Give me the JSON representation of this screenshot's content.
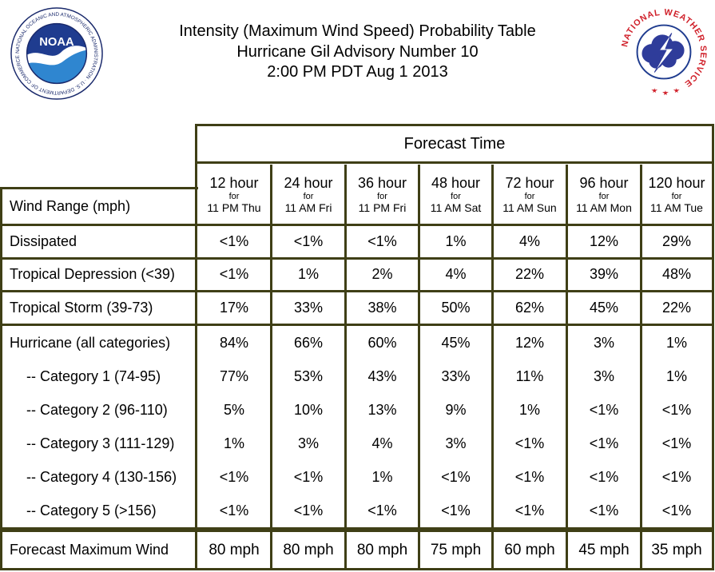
{
  "header": {
    "title_lines": [
      "Intensity (Maximum Wind Speed) Probability Table",
      "Hurricane Gil Advisory Number 10",
      "2:00 PM PDT Aug 1 2013"
    ],
    "left_logo": {
      "center_text": "NOAA",
      "ring_text": "NATIONAL OCEANIC AND ATMOSPHERIC ADMINISTRATION · U.S. DEPARTMENT OF COMMERCE"
    },
    "right_logo": {
      "ring_text": "NATIONAL WEATHER SERVICE"
    }
  },
  "table": {
    "forecast_time_label": "Forecast Time",
    "row_header_label": "Wind Range (mph)",
    "columns": [
      {
        "hours": "12 hour",
        "for": "for",
        "when": "11 PM Thu"
      },
      {
        "hours": "24 hour",
        "for": "for",
        "when": "11 AM Fri"
      },
      {
        "hours": "36 hour",
        "for": "for",
        "when": "11 PM Fri"
      },
      {
        "hours": "48 hour",
        "for": "for",
        "when": "11 AM Sat"
      },
      {
        "hours": "72 hour",
        "for": "for",
        "when": "11 AM Sun"
      },
      {
        "hours": "96 hour",
        "for": "for",
        "when": "11 AM Mon"
      },
      {
        "hours": "120 hour",
        "for": "for",
        "when": "11 AM Tue"
      }
    ],
    "rows": [
      {
        "label": "Dissipated",
        "values": [
          "<1%",
          "<1%",
          "<1%",
          "1%",
          "4%",
          "12%",
          "29%"
        ]
      },
      {
        "label": "Tropical Depression (<39)",
        "values": [
          "<1%",
          "1%",
          "2%",
          "4%",
          "22%",
          "39%",
          "48%"
        ]
      },
      {
        "label": "Tropical Storm (39-73)",
        "values": [
          "17%",
          "33%",
          "38%",
          "50%",
          "62%",
          "45%",
          "22%"
        ]
      },
      {
        "label": "Hurricane (all categories)",
        "values": [
          "84%",
          "66%",
          "60%",
          "45%",
          "12%",
          "3%",
          "1%"
        ]
      },
      {
        "label": "-- Category 1 (74-95)",
        "values": [
          "77%",
          "53%",
          "43%",
          "33%",
          "11%",
          "3%",
          "1%"
        ]
      },
      {
        "label": "-- Category 2 (96-110)",
        "values": [
          "5%",
          "10%",
          "13%",
          "9%",
          "1%",
          "<1%",
          "<1%"
        ]
      },
      {
        "label": "-- Category 3 (111-129)",
        "values": [
          "1%",
          "3%",
          "4%",
          "3%",
          "<1%",
          "<1%",
          "<1%"
        ]
      },
      {
        "label": "-- Category 4 (130-156)",
        "values": [
          "<1%",
          "<1%",
          "1%",
          "<1%",
          "<1%",
          "<1%",
          "<1%"
        ]
      },
      {
        "label": "-- Category 5 (>156)",
        "values": [
          "<1%",
          "<1%",
          "<1%",
          "<1%",
          "<1%",
          "<1%",
          "<1%"
        ]
      }
    ],
    "max_wind": {
      "label": "Forecast Maximum Wind",
      "values": [
        "80 mph",
        "80 mph",
        "80 mph",
        "75 mph",
        "60 mph",
        "45 mph",
        "35 mph"
      ]
    }
  }
}
